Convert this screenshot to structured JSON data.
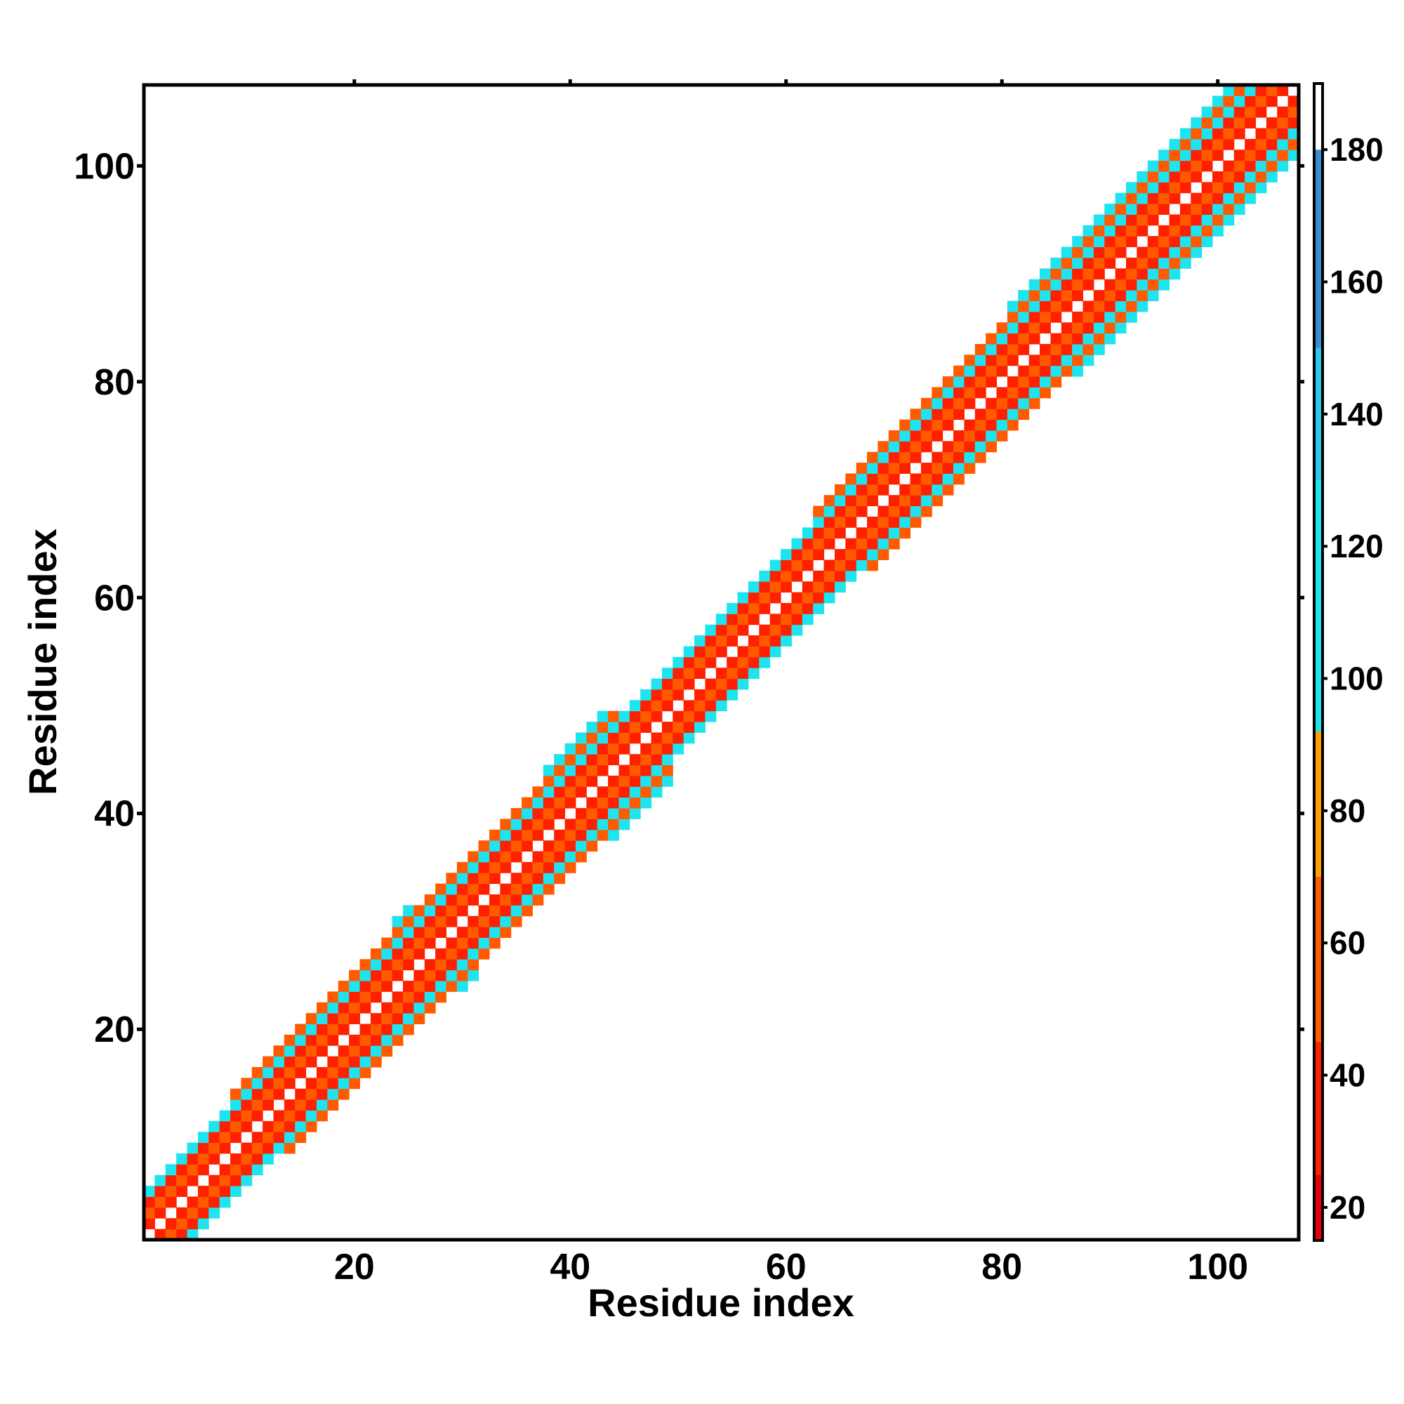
{
  "chart_data": {
    "type": "heatmap",
    "title": "",
    "xlabel": "Residue index",
    "ylabel": "Residue index",
    "xlim": [
      0.5,
      107.5
    ],
    "ylim": [
      0.5,
      107.5
    ],
    "xticks": [
      20,
      40,
      60,
      80,
      100
    ],
    "yticks": [
      20,
      40,
      60,
      80,
      100
    ],
    "colorbar": {
      "range": [
        15,
        190
      ],
      "ticks": [
        20,
        40,
        60,
        80,
        100,
        120,
        140,
        160,
        180
      ],
      "bands": [
        {
          "from": 15,
          "to": 25,
          "color": "#e8000b"
        },
        {
          "from": 25,
          "to": 45,
          "color": "#ff2000"
        },
        {
          "from": 45,
          "to": 70,
          "color": "#ff5a00"
        },
        {
          "from": 70,
          "to": 92,
          "color": "#ff9f00"
        },
        {
          "from": 92,
          "to": 130,
          "color": "#1ee4f0"
        },
        {
          "from": 130,
          "to": 150,
          "color": "#2ec8e8"
        },
        {
          "from": 150,
          "to": 180,
          "color": "#3b8fd0"
        },
        {
          "from": 180,
          "to": 190,
          "color": "#ffffff"
        }
      ]
    },
    "pattern": {
      "description_values": "distance matrix near diagonal",
      "diagonal_value": 190,
      "offset_values": {
        "1": 35,
        "2": 60,
        "3": 35,
        "4": 110,
        "5": 60,
        "6": 110
      },
      "band_halfwidth_by_segment": [
        {
          "from": 1,
          "to": 8,
          "halfwidth": 3
        },
        {
          "from": 9,
          "to": 23,
          "halfwidth": 4
        },
        {
          "from": 24,
          "to": 31,
          "halfwidth": 5
        },
        {
          "from": 32,
          "to": 37,
          "halfwidth": 4
        },
        {
          "from": 38,
          "to": 49,
          "halfwidth": 5
        },
        {
          "from": 50,
          "to": 62,
          "halfwidth": 3
        },
        {
          "from": 63,
          "to": 70,
          "halfwidth": 4
        },
        {
          "from": 71,
          "to": 80,
          "halfwidth": 4
        },
        {
          "from": 81,
          "to": 92,
          "halfwidth": 5
        },
        {
          "from": 93,
          "to": 107,
          "halfwidth": 5
        }
      ]
    }
  }
}
